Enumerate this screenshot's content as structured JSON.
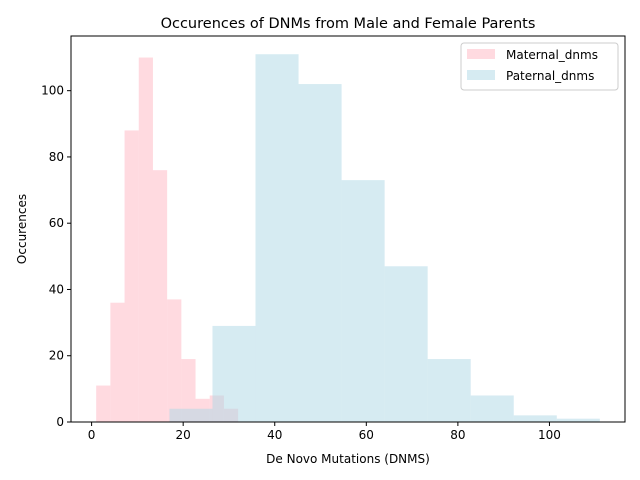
{
  "chart_data": {
    "type": "bar",
    "title": "Occurences of DNMs from Male and Female Parents",
    "xlabel": "De Novo Mutations (DNMS)",
    "ylabel": "Occurences",
    "xlim": [
      -4.5,
      116.5
    ],
    "ylim": [
      0,
      116.5
    ],
    "x_ticks": [
      0,
      20,
      40,
      60,
      80,
      100
    ],
    "y_ticks": [
      0,
      20,
      40,
      60,
      80,
      100
    ],
    "grid": false,
    "legend_position": "top-right",
    "series": [
      {
        "name": "Maternal_dnms",
        "color": "#ffb6c1",
        "opacity": 0.5,
        "bin_edges": [
          1.0,
          4.1,
          7.2,
          10.3,
          13.4,
          16.5,
          19.6,
          22.7,
          25.8,
          28.9,
          32.0
        ],
        "counts": [
          11,
          36,
          88,
          110,
          76,
          37,
          19,
          7,
          8,
          4
        ]
      },
      {
        "name": "Paternal_dnms",
        "color": "#add8e6",
        "opacity": 0.5,
        "bin_edges": [
          17.0,
          26.4,
          35.8,
          45.2,
          54.6,
          64.0,
          73.4,
          82.8,
          92.2,
          101.6,
          111.0
        ],
        "counts": [
          4,
          29,
          111,
          102,
          73,
          47,
          19,
          8,
          2,
          1
        ]
      }
    ]
  }
}
